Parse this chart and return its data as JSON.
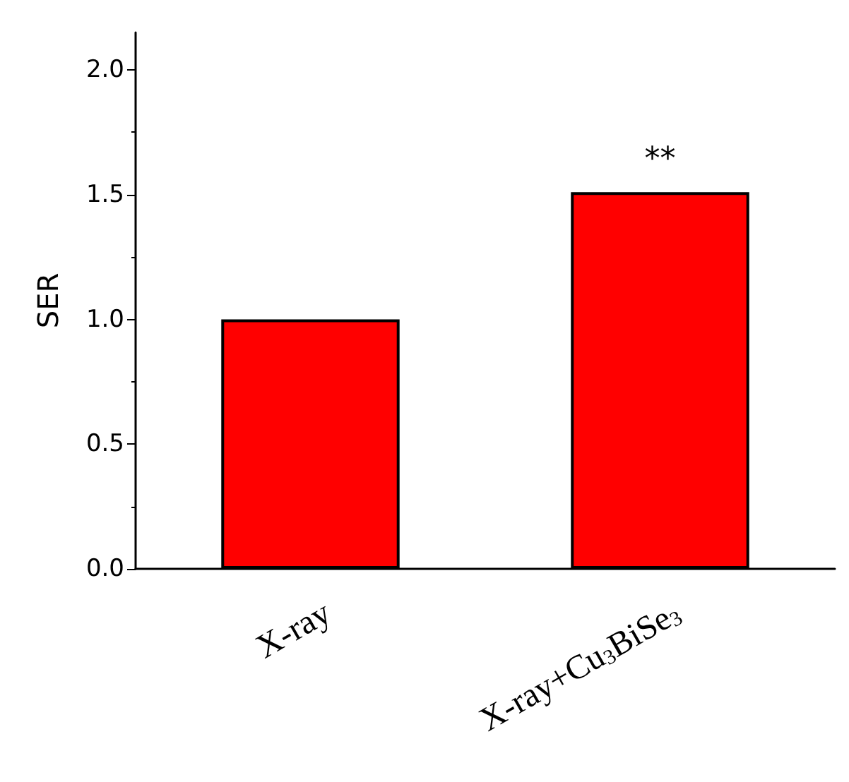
{
  "chart_data": {
    "type": "bar",
    "ylabel": "SER",
    "categories": [
      "X-ray",
      "X-ray+Cu$_{3}$BiSe$_{3}$"
    ],
    "values": [
      1.0,
      1.51
    ],
    "color": "#ff0000",
    "ylim": [
      0,
      2.15
    ],
    "yticks": [
      {
        "value": 0,
        "label": "0.0"
      },
      {
        "value": 0.5,
        "label": "0.5"
      },
      {
        "value": 1,
        "label": "1.0"
      },
      {
        "value": 1.5,
        "label": "1.5"
      },
      {
        "value": 2,
        "label": "2.0"
      }
    ],
    "annotations": [
      {
        "text": "**",
        "x": "X-ray+Cu$_{3}$BiSe$_{3}$",
        "y": 1.51
      }
    ],
    "grid": false
  }
}
